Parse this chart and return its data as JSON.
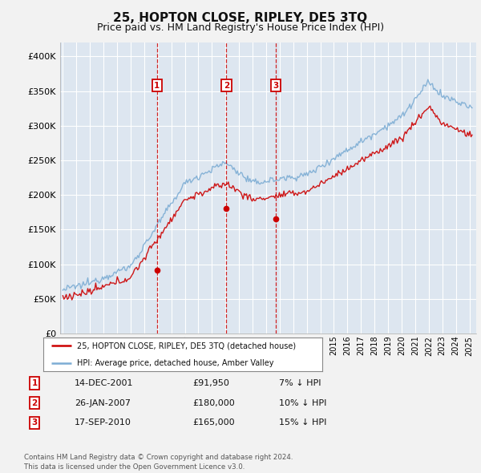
{
  "title": "25, HOPTON CLOSE, RIPLEY, DE5 3TQ",
  "subtitle": "Price paid vs. HM Land Registry's House Price Index (HPI)",
  "title_fontsize": 11,
  "subtitle_fontsize": 9,
  "ylabel_ticks": [
    "£0",
    "£50K",
    "£100K",
    "£150K",
    "£200K",
    "£250K",
    "£300K",
    "£350K",
    "£400K"
  ],
  "ytick_values": [
    0,
    50000,
    100000,
    150000,
    200000,
    250000,
    300000,
    350000,
    400000
  ],
  "ylim": [
    0,
    420000
  ],
  "xlim_start": 1994.8,
  "xlim_end": 2025.5,
  "plot_bg_color": "#dde6f0",
  "fig_bg_color": "#f2f2f2",
  "grid_color": "#ffffff",
  "red_line_color": "#cc0000",
  "blue_line_color": "#7dadd4",
  "sale_markers": [
    {
      "date_decimal": 2001.95,
      "price": 91950,
      "label": "1"
    },
    {
      "date_decimal": 2007.07,
      "price": 180000,
      "label": "2"
    },
    {
      "date_decimal": 2010.71,
      "price": 165000,
      "label": "3"
    }
  ],
  "legend_entries": [
    {
      "label": "25, HOPTON CLOSE, RIPLEY, DE5 3TQ (detached house)",
      "color": "#cc0000"
    },
    {
      "label": "HPI: Average price, detached house, Amber Valley",
      "color": "#7dadd4"
    }
  ],
  "table_rows": [
    {
      "num": "1",
      "date": "14-DEC-2001",
      "price": "£91,950",
      "hpi": "7% ↓ HPI"
    },
    {
      "num": "2",
      "date": "26-JAN-2007",
      "price": "£180,000",
      "hpi": "10% ↓ HPI"
    },
    {
      "num": "3",
      "date": "17-SEP-2010",
      "price": "£165,000",
      "hpi": "15% ↓ HPI"
    }
  ],
  "footnote": "Contains HM Land Registry data © Crown copyright and database right 2024.\nThis data is licensed under the Open Government Licence v3.0.",
  "vline_color": "#cc0000",
  "marker_box_color": "#cc0000",
  "x_years": [
    1995,
    1996,
    1997,
    1998,
    1999,
    2000,
    2001,
    2002,
    2003,
    2004,
    2005,
    2006,
    2007,
    2008,
    2009,
    2010,
    2011,
    2012,
    2013,
    2014,
    2015,
    2016,
    2017,
    2018,
    2019,
    2020,
    2021,
    2022,
    2023,
    2024,
    2025
  ]
}
